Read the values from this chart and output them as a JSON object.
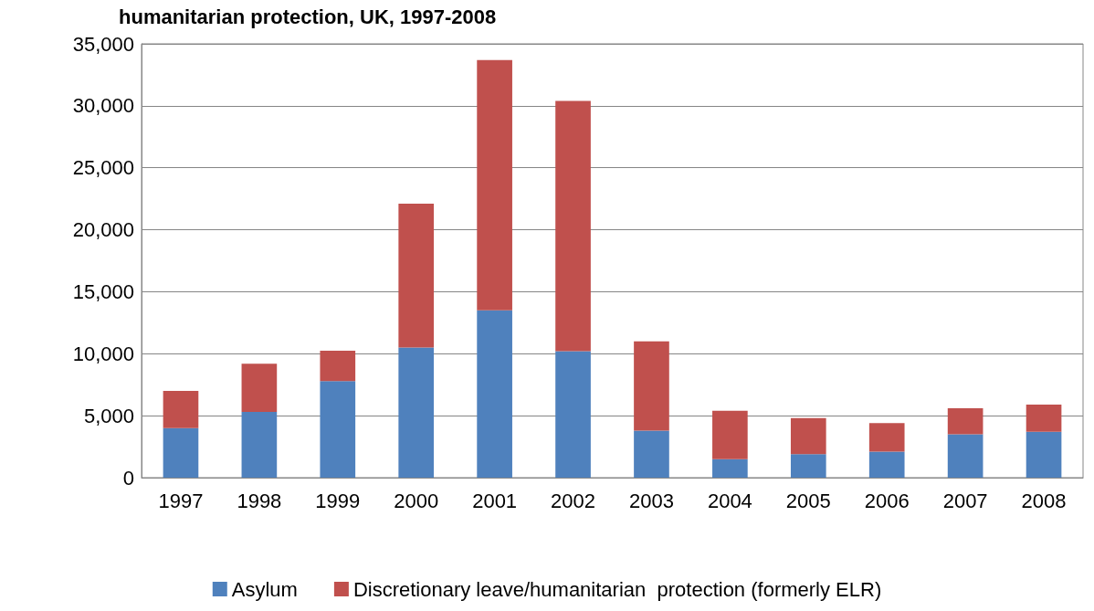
{
  "chart_data": {
    "type": "bar",
    "title": "humanitarian protection, UK, 1997-2008",
    "stacked": true,
    "categories": [
      "1997",
      "1998",
      "1999",
      "2000",
      "2001",
      "2002",
      "2003",
      "2004",
      "2005",
      "2006",
      "2007",
      "2008"
    ],
    "series": [
      {
        "name": "Asylum",
        "color": "#4f81bd",
        "values": [
          4000,
          5300,
          7800,
          10500,
          13500,
          10200,
          3800,
          1500,
          1900,
          2100,
          3500,
          3700
        ]
      },
      {
        "name": "Discretionary leave/humanitarian  protection (formerly ELR)",
        "color": "#c0504d",
        "values": [
          3000,
          3900,
          2450,
          11600,
          20200,
          20200,
          7200,
          3900,
          2900,
          2300,
          2100,
          2200
        ]
      }
    ],
    "ylim": [
      0,
      35000
    ],
    "yticks": [
      0,
      {
        "value": 5000,
        "label": "5,000"
      },
      {
        "value": 10000,
        "label": "10,000"
      },
      {
        "value": 15000,
        "label": "15,000"
      },
      {
        "value": 20000,
        "label": "20,000"
      },
      {
        "value": 25000,
        "label": "25,000"
      },
      {
        "value": 30000,
        "label": "30,000"
      },
      {
        "value": 35000,
        "label": "35,000"
      }
    ],
    "grid": "y",
    "legend": "bottom"
  }
}
